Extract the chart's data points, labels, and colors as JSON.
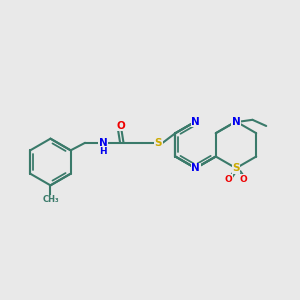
{
  "bg_color": "#e9e9e9",
  "bond_color": "#3a7a6a",
  "bond_lw": 1.5,
  "atom_colors": {
    "N": "#0000ee",
    "S": "#ccaa00",
    "O": "#ee0000",
    "C": "#3a7a6a"
  },
  "figsize": [
    3.0,
    3.0
  ],
  "dpi": 100
}
